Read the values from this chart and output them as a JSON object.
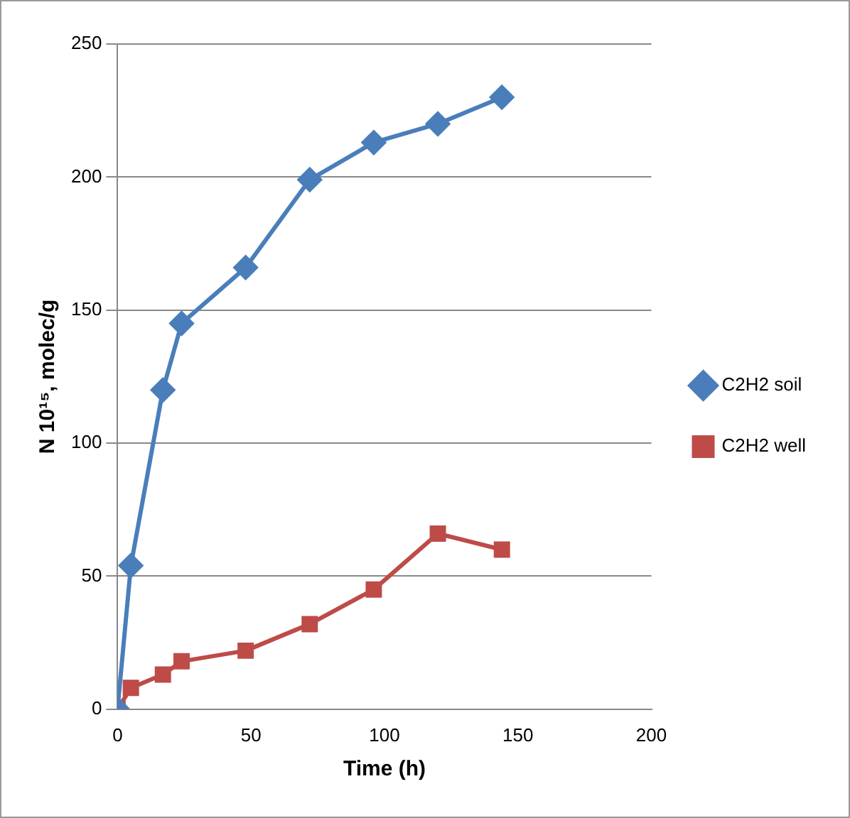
{
  "chart_data": {
    "type": "line",
    "xlabel": "Time (h)",
    "ylabel": "N 10¹⁵, molec/g",
    "xlim": [
      0,
      200
    ],
    "xticks": [
      0,
      50,
      100,
      150,
      200
    ],
    "ylim": [
      0,
      250
    ],
    "yticks": [
      0,
      50,
      100,
      150,
      200,
      250
    ],
    "grid": "y",
    "legend": "right",
    "series": [
      {
        "name": "C2H2 soil",
        "color": "#4a7ebb",
        "marker": "diamond",
        "x": [
          0,
          5,
          17,
          24,
          48,
          72,
          96,
          120,
          144
        ],
        "values": [
          0,
          54,
          120,
          145,
          166,
          199,
          213,
          220,
          230
        ]
      },
      {
        "name": "C2H2 well",
        "color": "#be4b48",
        "marker": "square",
        "x": [
          0,
          5,
          17,
          24,
          48,
          72,
          96,
          120,
          144
        ],
        "values": [
          0,
          8,
          13,
          18,
          22,
          32,
          45,
          66,
          60
        ]
      }
    ]
  }
}
